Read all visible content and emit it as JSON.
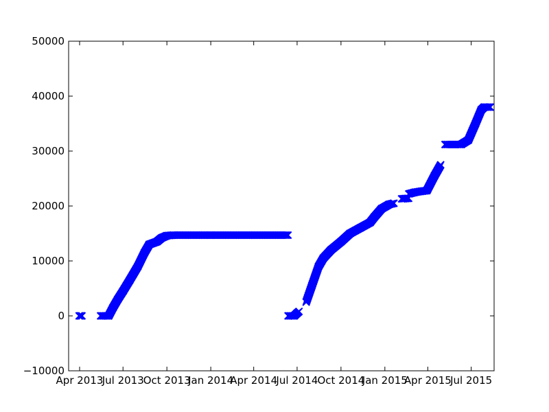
{
  "chart_data": {
    "type": "scatter",
    "marker": "x",
    "color": "#0000ff",
    "grid": false,
    "x_axis": {
      "type": "date",
      "range": [
        "2013-03-09",
        "2015-08-18"
      ],
      "ticks": [
        {
          "date": "2013-04-01",
          "label": "Apr 2013"
        },
        {
          "date": "2013-07-01",
          "label": "Jul 2013"
        },
        {
          "date": "2013-10-01",
          "label": "Oct 2013"
        },
        {
          "date": "2014-01-01",
          "label": "Jan 2014"
        },
        {
          "date": "2014-04-01",
          "label": "Apr 2014"
        },
        {
          "date": "2014-07-01",
          "label": "Jul 2014"
        },
        {
          "date": "2014-10-01",
          "label": "Oct 2014"
        },
        {
          "date": "2015-01-01",
          "label": "Jan 2015"
        },
        {
          "date": "2015-04-01",
          "label": "Apr 2015"
        },
        {
          "date": "2015-07-01",
          "label": "Jul 2015"
        }
      ]
    },
    "y_axis": {
      "range": [
        -10000,
        50000
      ],
      "ticks": [
        {
          "value": -10000,
          "label": "−10000"
        },
        {
          "value": 0,
          "label": "0"
        },
        {
          "value": 10000,
          "label": "10000"
        },
        {
          "value": 20000,
          "label": "20000"
        },
        {
          "value": 30000,
          "label": "30000"
        },
        {
          "value": 40000,
          "label": "40000"
        },
        {
          "value": 50000,
          "label": "50000"
        }
      ]
    },
    "segments": [
      {
        "points": [
          [
            "2013-03-31",
            0
          ],
          [
            "2013-04-06",
            0
          ]
        ]
      },
      {
        "points": [
          [
            "2013-05-15",
            0
          ],
          [
            "2013-06-01",
            0
          ],
          [
            "2013-06-10",
            1500
          ],
          [
            "2013-06-20",
            3000
          ],
          [
            "2013-07-01",
            4500
          ],
          [
            "2013-07-15",
            6500
          ],
          [
            "2013-08-01",
            9000
          ],
          [
            "2013-08-15",
            11500
          ],
          [
            "2013-08-25",
            13000
          ],
          [
            "2013-09-10",
            13500
          ],
          [
            "2013-09-20",
            14200
          ],
          [
            "2013-10-01",
            14600
          ],
          [
            "2013-10-15",
            14700
          ],
          [
            "2014-01-01",
            14700
          ],
          [
            "2014-06-12",
            14700
          ]
        ]
      },
      {
        "points": [
          [
            "2014-06-12",
            0
          ],
          [
            "2014-06-25",
            0
          ],
          [
            "2014-07-01",
            500
          ],
          [
            "2014-07-05",
            800
          ]
        ]
      },
      {
        "points": [
          [
            "2014-07-20",
            2500
          ],
          [
            "2014-08-01",
            5500
          ],
          [
            "2014-08-15",
            9000
          ],
          [
            "2014-08-25",
            10500
          ],
          [
            "2014-09-10",
            12000
          ],
          [
            "2014-10-01",
            13500
          ],
          [
            "2014-10-20",
            15000
          ],
          [
            "2014-11-10",
            16000
          ],
          [
            "2014-12-01",
            17000
          ],
          [
            "2014-12-10",
            18000
          ],
          [
            "2014-12-25",
            19500
          ],
          [
            "2015-01-10",
            20300
          ],
          [
            "2015-01-20",
            20500
          ]
        ]
      },
      {
        "points": [
          [
            "2015-02-05",
            21300
          ],
          [
            "2015-02-20",
            21400
          ]
        ]
      },
      {
        "points": [
          [
            "2015-02-20",
            22200
          ],
          [
            "2015-03-05",
            22500
          ],
          [
            "2015-03-20",
            22700
          ],
          [
            "2015-03-30",
            22800
          ],
          [
            "2015-04-15",
            25500
          ],
          [
            "2015-04-28",
            27500
          ]
        ]
      },
      {
        "points": [
          [
            "2015-05-07",
            31200
          ],
          [
            "2015-06-10",
            31200
          ],
          [
            "2015-06-25",
            32000
          ],
          [
            "2015-07-10",
            35000
          ],
          [
            "2015-07-22",
            37500
          ],
          [
            "2015-07-28",
            38000
          ],
          [
            "2015-08-10",
            38000
          ]
        ]
      }
    ]
  }
}
